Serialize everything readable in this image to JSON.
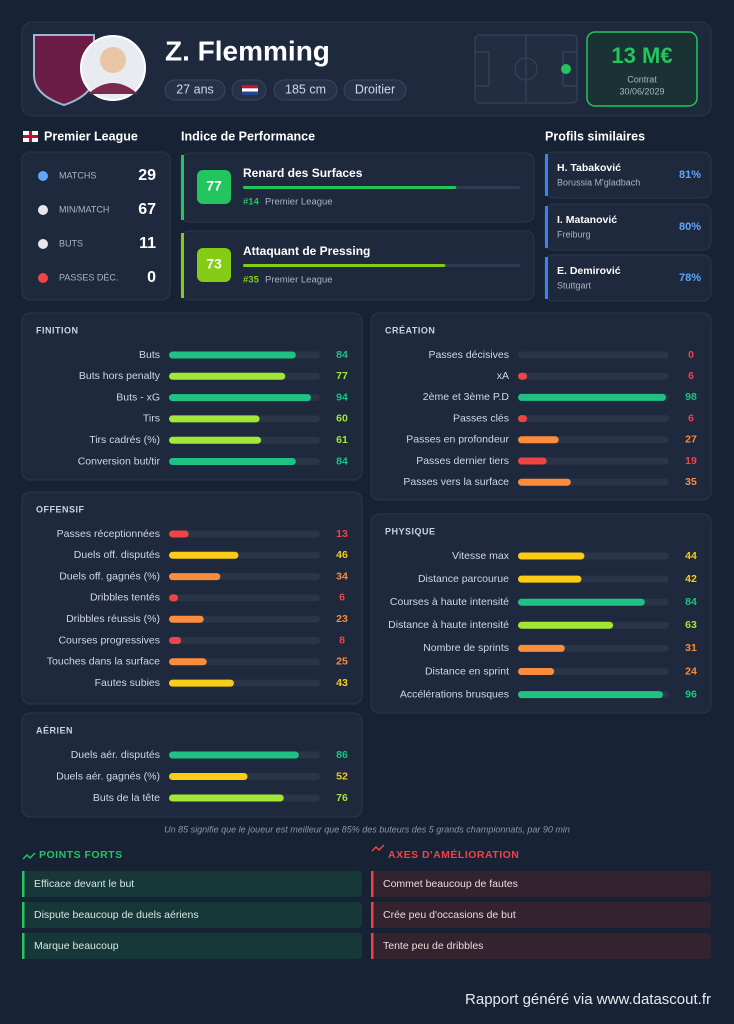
{
  "header": {
    "name": "Z. Flemming",
    "tags": [
      "27 ans",
      "185 cm",
      "Droitier"
    ],
    "value": "13 M€",
    "contract_label": "Contrat",
    "contract_date": "30/06/2029"
  },
  "league": {
    "title": "Premier League",
    "stats": [
      {
        "label": "MATCHS",
        "value": 29
      },
      {
        "label": "MIN/MATCH",
        "value": 67
      },
      {
        "label": "BUTS",
        "value": 11
      },
      {
        "label": "PASSES DÉC.",
        "value": 0
      }
    ]
  },
  "performance": {
    "title": "Indice de Performance",
    "roles": [
      {
        "score": 77,
        "name": "Renard des Surfaces",
        "rank": "#14",
        "league": "Premier League",
        "color": "#22c55e"
      },
      {
        "score": 73,
        "name": "Attaquant de Pressing",
        "rank": "#35",
        "league": "Premier League",
        "color": "#84cc16"
      }
    ]
  },
  "similar": {
    "title": "Profils similaires",
    "players": [
      {
        "name": "H. Tabaković",
        "club": "Borussia M'gladbach",
        "score": "81%"
      },
      {
        "name": "I. Matanović",
        "club": "Freiburg",
        "score": "80%"
      },
      {
        "name": "E. Demirović",
        "club": "Stuttgart",
        "score": "78%"
      }
    ]
  },
  "xlim": [
    0,
    100
  ],
  "sections": [
    {
      "title": "FINITION",
      "metrics": [
        {
          "label": "Buts",
          "value": 84
        },
        {
          "label": "Buts hors penalty",
          "value": 77
        },
        {
          "label": "Buts - xG",
          "value": 94
        },
        {
          "label": "Tirs",
          "value": 60
        },
        {
          "label": "Tirs cadrés (%)",
          "value": 61
        },
        {
          "label": "Conversion but/tir",
          "value": 84
        }
      ]
    },
    {
      "title": "OFFENSIF",
      "metrics": [
        {
          "label": "Passes réceptionnées",
          "value": 13
        },
        {
          "label": "Duels off. disputés",
          "value": 46
        },
        {
          "label": "Duels off. gagnés (%)",
          "value": 34
        },
        {
          "label": "Dribbles tentés",
          "value": 6
        },
        {
          "label": "Dribbles réussis (%)",
          "value": 23
        },
        {
          "label": "Courses progressives",
          "value": 8
        },
        {
          "label": "Touches dans la surface",
          "value": 25
        },
        {
          "label": "Fautes subies",
          "value": 43
        }
      ]
    },
    {
      "title": "AÉRIEN",
      "metrics": [
        {
          "label": "Duels aér. disputés",
          "value": 86
        },
        {
          "label": "Duels aér. gagnés (%)",
          "value": 52
        },
        {
          "label": "Buts de la tête",
          "value": 76
        }
      ]
    },
    {
      "title": "CRÉATION",
      "metrics": [
        {
          "label": "Passes décisives",
          "value": 0
        },
        {
          "label": "xA",
          "value": 6
        },
        {
          "label": "2ème et 3ème P.D",
          "value": 98
        },
        {
          "label": "Passes clés",
          "value": 6
        },
        {
          "label": "Passes en profondeur",
          "value": 27
        },
        {
          "label": "Passes dernier tiers",
          "value": 19
        },
        {
          "label": "Passes vers la surface",
          "value": 35
        }
      ]
    },
    {
      "title": "PHYSIQUE",
      "metrics": [
        {
          "label": "Vitesse max",
          "value": 44
        },
        {
          "label": "Distance parcourue",
          "value": 42
        },
        {
          "label": "Courses à haute intensité",
          "value": 84
        },
        {
          "label": "Distance à haute intensité",
          "value": 63
        },
        {
          "label": "Nombre de sprints",
          "value": 31
        },
        {
          "label": "Distance en sprint",
          "value": 24
        },
        {
          "label": "Accélérations brusques",
          "value": 96
        }
      ]
    }
  ],
  "note": "Un 85 signifie que le joueur est meilleur que 85% des buteurs des 5 grands championnats, par 90 min",
  "strengths": {
    "title": "POINTS FORTS",
    "items": [
      "Efficace devant le but",
      "Dispute beaucoup de duels aériens",
      "Marque beaucoup"
    ]
  },
  "weaknesses": {
    "title": "AXES D'AMÉLIORATION",
    "items": [
      "Commet beaucoup de fautes",
      "Crée peu d'occasions de but",
      "Tente peu de dribbles"
    ]
  },
  "footer": "Rapport généré via www.datascout.fr"
}
